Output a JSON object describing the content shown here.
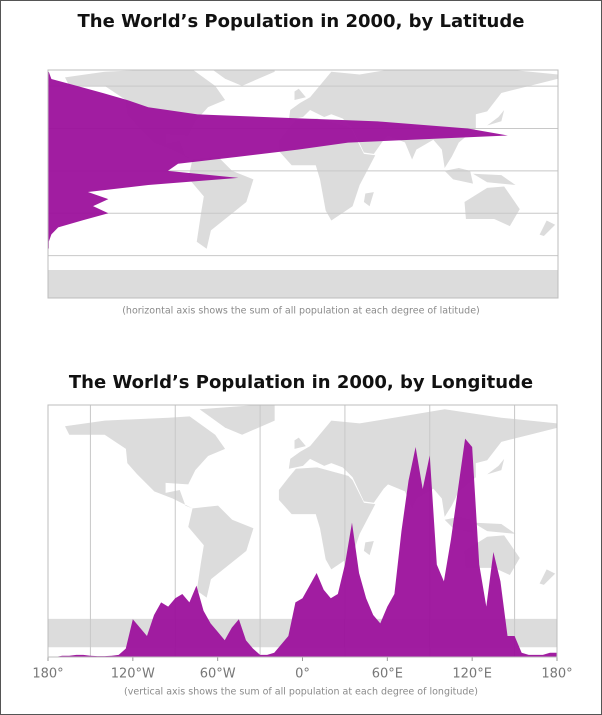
{
  "chart_data": [
    {
      "type": "area",
      "orientation": "horizontal",
      "title": "The World’s Population in 2000, by Latitude",
      "caption": "(horizontal axis shows the sum of all population at each degree of latitude)",
      "color": "#9c119c",
      "x": [
        70,
        65,
        60,
        55,
        50,
        45,
        40,
        35,
        30,
        25,
        20,
        15,
        10,
        5,
        0,
        -5,
        -10,
        -15,
        -20,
        -25,
        -30,
        -35,
        -40,
        -45,
        -50,
        -55
      ],
      "values": [
        0.1,
        0.4,
        3.5,
        6.5,
        9.4,
        11.8,
        17.6,
        38.8,
        49.4,
        54.1,
        35.3,
        29.4,
        22.4,
        15.3,
        14.1,
        22.4,
        11.8,
        4.7,
        7.1,
        5.3,
        7.1,
        4.1,
        1.2,
        0.4,
        0.1,
        0.1
      ],
      "xlim": [
        -90,
        71.4
      ],
      "ylim": [
        0,
        60
      ],
      "grid": [
        60,
        30,
        0,
        -30,
        -60
      ]
    },
    {
      "type": "area",
      "orientation": "vertical",
      "title": "The World’s Population in 2000, by Longitude",
      "caption": "(vertical axis shows the sum of all population at each degree of longitude)",
      "color": "#9c119c",
      "x": [
        -180,
        -175,
        -170,
        -165,
        -160,
        -155,
        -150,
        -145,
        -140,
        -135,
        -130,
        -125,
        -120,
        -115,
        -110,
        -105,
        -100,
        -95,
        -90,
        -85,
        -80,
        -75,
        -70,
        -65,
        -60,
        -55,
        -50,
        -45,
        -40,
        -35,
        -30,
        -25,
        -20,
        -15,
        -10,
        -5,
        0,
        5,
        10,
        15,
        20,
        25,
        30,
        35,
        40,
        45,
        50,
        55,
        60,
        65,
        70,
        75,
        80,
        85,
        90,
        95,
        100,
        105,
        110,
        115,
        120,
        125,
        130,
        135,
        140,
        145,
        150,
        155,
        160,
        165,
        170,
        175,
        180
      ],
      "values": [
        0,
        0,
        0.3,
        0.3,
        0.5,
        0.5,
        0.3,
        0.2,
        0.2,
        0.3,
        0.5,
        2,
        9,
        7,
        5,
        10,
        13,
        12,
        14,
        15,
        13,
        17,
        11,
        8,
        6,
        4,
        7,
        9,
        4,
        2,
        0.5,
        0.5,
        1,
        3,
        5,
        13,
        14,
        17,
        20,
        16,
        14,
        15,
        22,
        32,
        20,
        14,
        10,
        8,
        12,
        15,
        30,
        42,
        50,
        40,
        48,
        22,
        18,
        28,
        40,
        52,
        50,
        22,
        12,
        25,
        18,
        5,
        5,
        1,
        0.5,
        0.5,
        0.5,
        1,
        1
      ],
      "xlim": [
        -180,
        180
      ],
      "ylim": [
        0,
        60
      ],
      "xticks": [
        {
          "value": -180,
          "label": "180°"
        },
        {
          "value": -120,
          "label": "120°W"
        },
        {
          "value": -60,
          "label": "60°W"
        },
        {
          "value": 0,
          "label": "0°"
        },
        {
          "value": 60,
          "label": "60°E"
        },
        {
          "value": 120,
          "label": "120°E"
        },
        {
          "value": 180,
          "label": "180°"
        }
      ],
      "grid": [
        -150,
        -90,
        -30,
        30,
        90,
        150
      ]
    }
  ]
}
